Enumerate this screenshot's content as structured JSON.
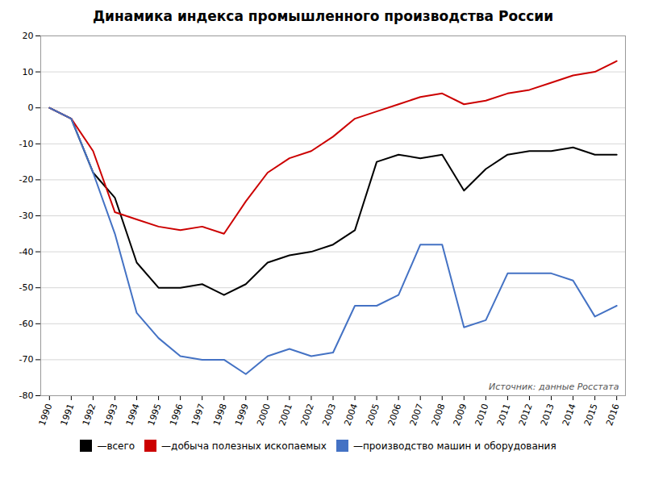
{
  "chart_data": {
    "type": "line",
    "title": "Динамика индекса промышленного производства России",
    "x": [
      1990,
      1991,
      1992,
      1993,
      1994,
      1995,
      1996,
      1997,
      1998,
      1999,
      2000,
      2001,
      2002,
      2003,
      2004,
      2005,
      2006,
      2007,
      2008,
      2009,
      2010,
      2011,
      2012,
      2013,
      2014,
      2015,
      2016
    ],
    "series": [
      {
        "name": "—всего",
        "color": "#000000",
        "values": [
          0,
          -3,
          -18,
          -25,
          -43,
          -50,
          -50,
          -49,
          -52,
          -49,
          -43,
          -41,
          -40,
          -38,
          -34,
          -15,
          -13,
          -14,
          -13,
          -23,
          -17,
          -13,
          -12,
          -12,
          -11,
          -13,
          -13
        ]
      },
      {
        "name": "—добыча полезных ископаемых",
        "color": "#cc0000",
        "values": [
          0,
          -3,
          -12,
          -29,
          -31,
          -33,
          -34,
          -33,
          -35,
          -26,
          -18,
          -14,
          -12,
          -8,
          -3,
          -1,
          1,
          3,
          4,
          1,
          2,
          4,
          5,
          7,
          9,
          10,
          13
        ]
      },
      {
        "name": "—производство машин и оборудования",
        "color": "#4472c4",
        "values": [
          0,
          -3,
          -18,
          -35,
          -57,
          -64,
          -69,
          -70,
          -70,
          -74,
          -69,
          -67,
          -69,
          -68,
          -55,
          -55,
          -52,
          -38,
          -38,
          -61,
          -59,
          -46,
          -46,
          -46,
          -48,
          -58,
          -55
        ]
      }
    ],
    "annotation": "Источник: данные Росстата",
    "xlim": [
      1989.6,
      2016.4
    ],
    "xticks": [
      1990,
      1991,
      1992,
      1993,
      1994,
      1995,
      1996,
      1997,
      1998,
      1999,
      2000,
      2001,
      2002,
      2003,
      2004,
      2005,
      2006,
      2007,
      2008,
      2009,
      2010,
      2011,
      2012,
      2013,
      2014,
      2015,
      2016
    ],
    "ylim": [
      -80,
      20
    ],
    "yticks": [
      -80,
      -70,
      -60,
      -50,
      -40,
      -30,
      -20,
      -10,
      0,
      10,
      20
    ],
    "grid": true,
    "legend": "bottom"
  }
}
